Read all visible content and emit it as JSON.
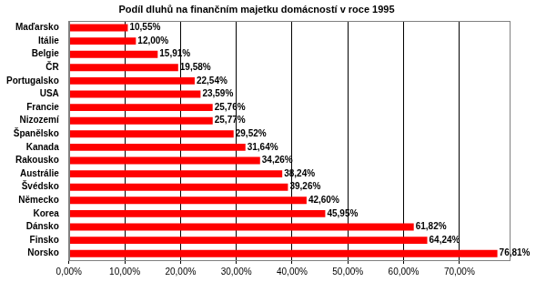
{
  "chart_data": {
    "type": "bar",
    "orientation": "horizontal",
    "title": "Podíl dluhů na finančním majetku domácností v roce 1995",
    "categories": [
      "Maďarsko",
      "Itálie",
      "Belgie",
      "ČR",
      "Portugalsko",
      "USA",
      "Francie",
      "Nizozemí",
      "Španělsko",
      "Kanada",
      "Rakousko",
      "Austrálie",
      "Švédsko",
      "Německo",
      "Korea",
      "Dánsko",
      "Finsko",
      "Norsko"
    ],
    "values": [
      10.55,
      12.0,
      15.91,
      19.58,
      22.54,
      23.59,
      25.76,
      25.77,
      29.52,
      31.64,
      34.26,
      38.24,
      39.26,
      42.6,
      45.95,
      61.82,
      64.24,
      76.81
    ],
    "value_labels": [
      "10,55%",
      "12,00%",
      "15,91%",
      "19,58%",
      "22,54%",
      "23,59%",
      "25,76%",
      "25,77%",
      "29,52%",
      "31,64%",
      "34,26%",
      "38,24%",
      "39,26%",
      "42,60%",
      "45,95%",
      "61,82%",
      "64,24%",
      "76,81%"
    ],
    "data_labels": true,
    "color": "#ff0000",
    "xlim": [
      0,
      79
    ],
    "xticks": [
      {
        "value": 0,
        "label": "0,00%"
      },
      {
        "value": 10,
        "label": "10,00%"
      },
      {
        "value": 20,
        "label": "20,00%"
      },
      {
        "value": 30,
        "label": "30,00%"
      },
      {
        "value": 40,
        "label": "40,00%"
      },
      {
        "value": 50,
        "label": "50,00%"
      },
      {
        "value": 60,
        "label": "60,00%"
      },
      {
        "value": 70,
        "label": "70,00%"
      }
    ],
    "grid": true
  }
}
